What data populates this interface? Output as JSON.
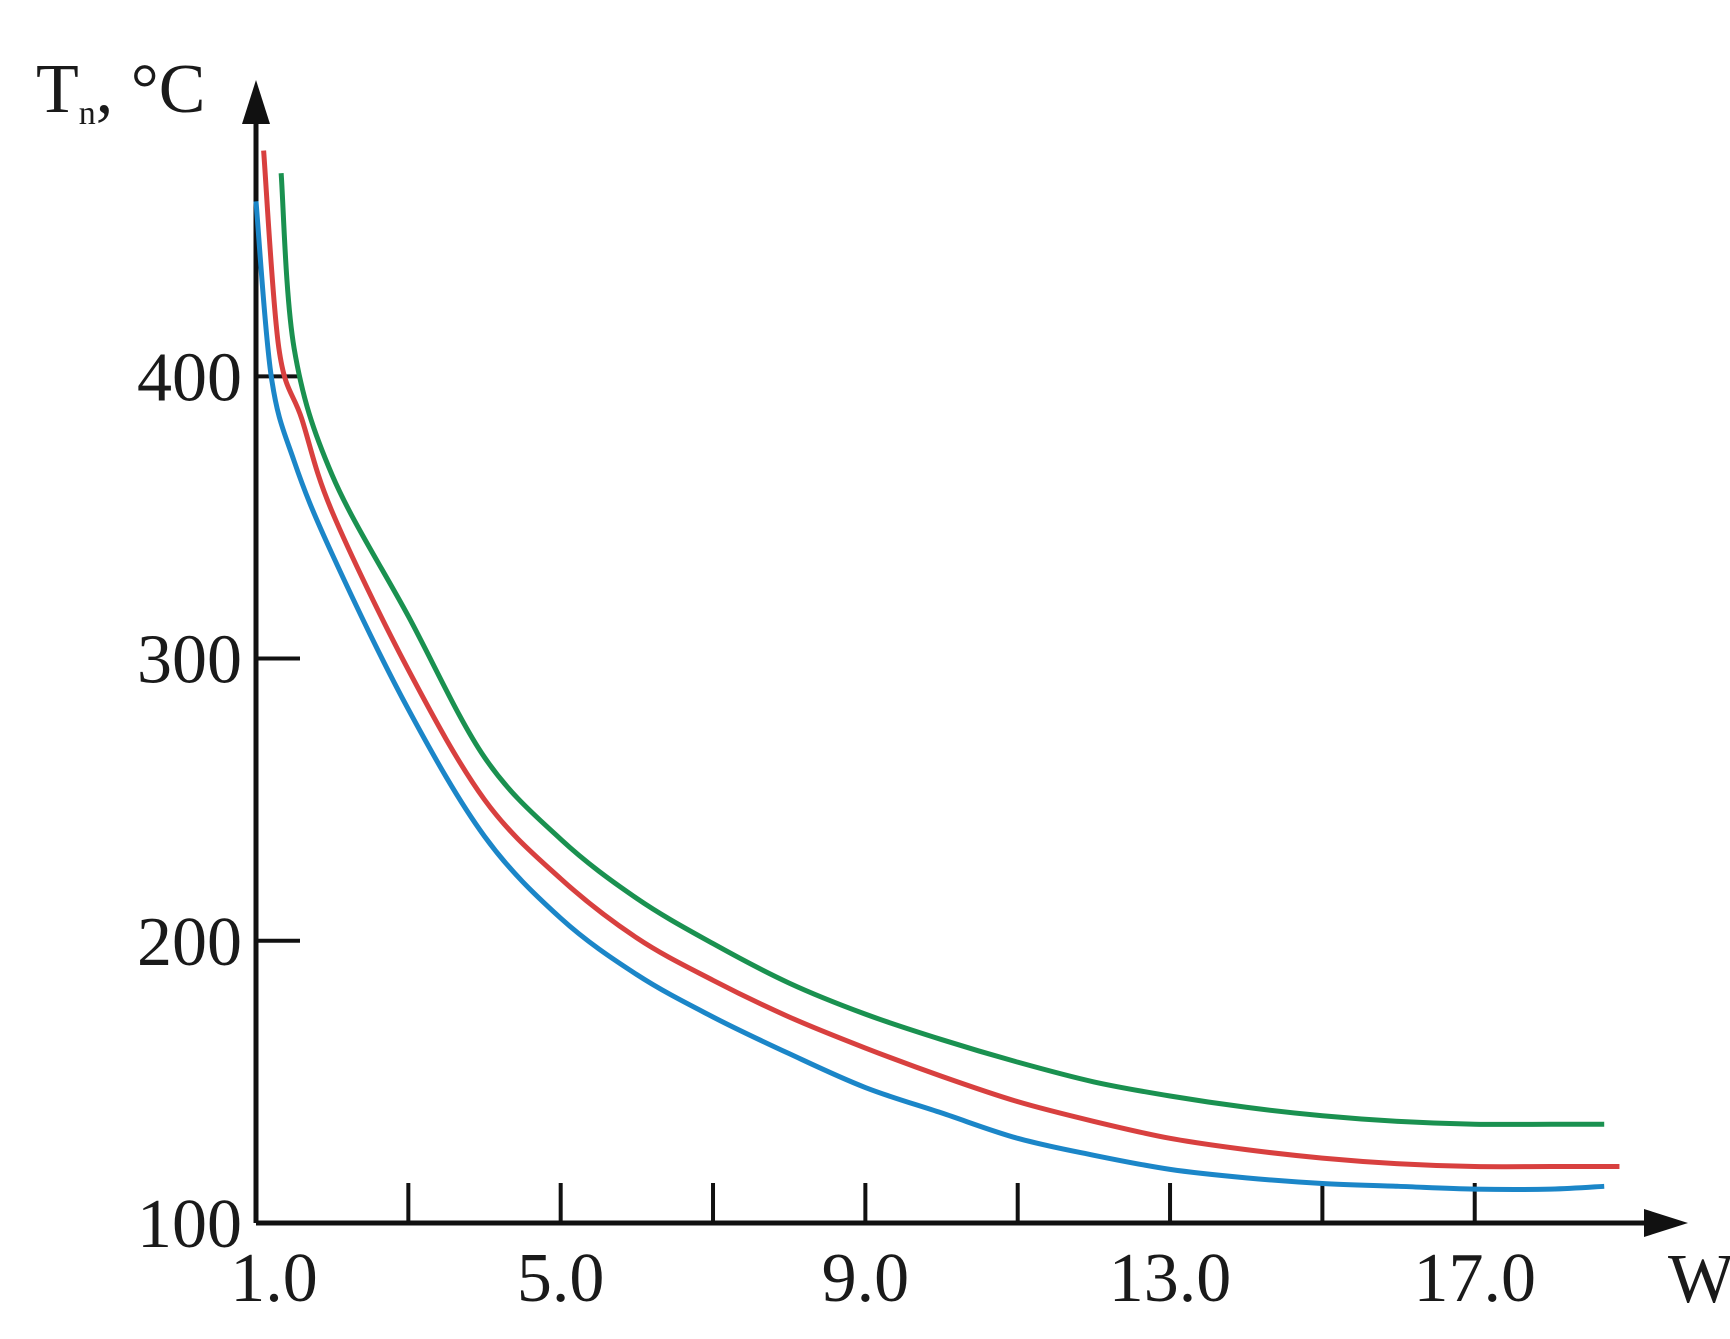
{
  "chart_data": {
    "type": "line",
    "y_label": {
      "symbol": "T",
      "subscript": "n",
      "unit": ", °C"
    },
    "x_label": "W",
    "xlim": [
      1,
      19.8
    ],
    "ylim": [
      100,
      505
    ],
    "xticks": [
      {
        "value": 1,
        "label": "1.0"
      },
      {
        "value": 5,
        "label": "5.0"
      },
      {
        "value": 9,
        "label": "9.0"
      },
      {
        "value": 13,
        "label": "13.0"
      },
      {
        "value": 17,
        "label": "17.0"
      }
    ],
    "xminor_ticks": [
      3,
      7,
      11,
      15
    ],
    "yticks": [
      100,
      200,
      300,
      400
    ],
    "series": [
      {
        "color": "#1b86c8",
        "x": [
          1.0,
          1.2,
          1.5,
          2,
          3,
          4,
          5,
          6,
          7,
          8,
          9,
          10,
          11,
          12,
          13,
          14,
          15,
          16,
          17,
          18,
          18.7
        ],
        "values": [
          462,
          400,
          370,
          337,
          282,
          237,
          208,
          188,
          173,
          160,
          148,
          139,
          130,
          124,
          119,
          116,
          114,
          113,
          112,
          112,
          113
        ]
      },
      {
        "color": "#d8403f",
        "x": [
          1.1,
          1.3,
          1.6,
          2,
          3,
          4,
          5,
          6,
          7,
          8,
          9,
          10,
          11,
          12,
          13,
          14,
          15,
          16,
          17,
          18,
          18.9
        ],
        "values": [
          480,
          410,
          385,
          352,
          296,
          250,
          222,
          201,
          186,
          173,
          162,
          152,
          143,
          136,
          130,
          126,
          123,
          121,
          120,
          120,
          120
        ]
      },
      {
        "color": "#1a9150",
        "x": [
          1.33,
          1.5,
          2,
          3,
          4,
          5,
          6,
          7,
          8,
          9,
          10,
          11,
          12,
          13,
          14,
          15,
          16,
          17,
          18,
          18.7
        ],
        "values": [
          472,
          410,
          365,
          315,
          265,
          236,
          215,
          199,
          185,
          174,
          165,
          157,
          150,
          145,
          141,
          138,
          136,
          135,
          135,
          135
        ]
      }
    ]
  }
}
